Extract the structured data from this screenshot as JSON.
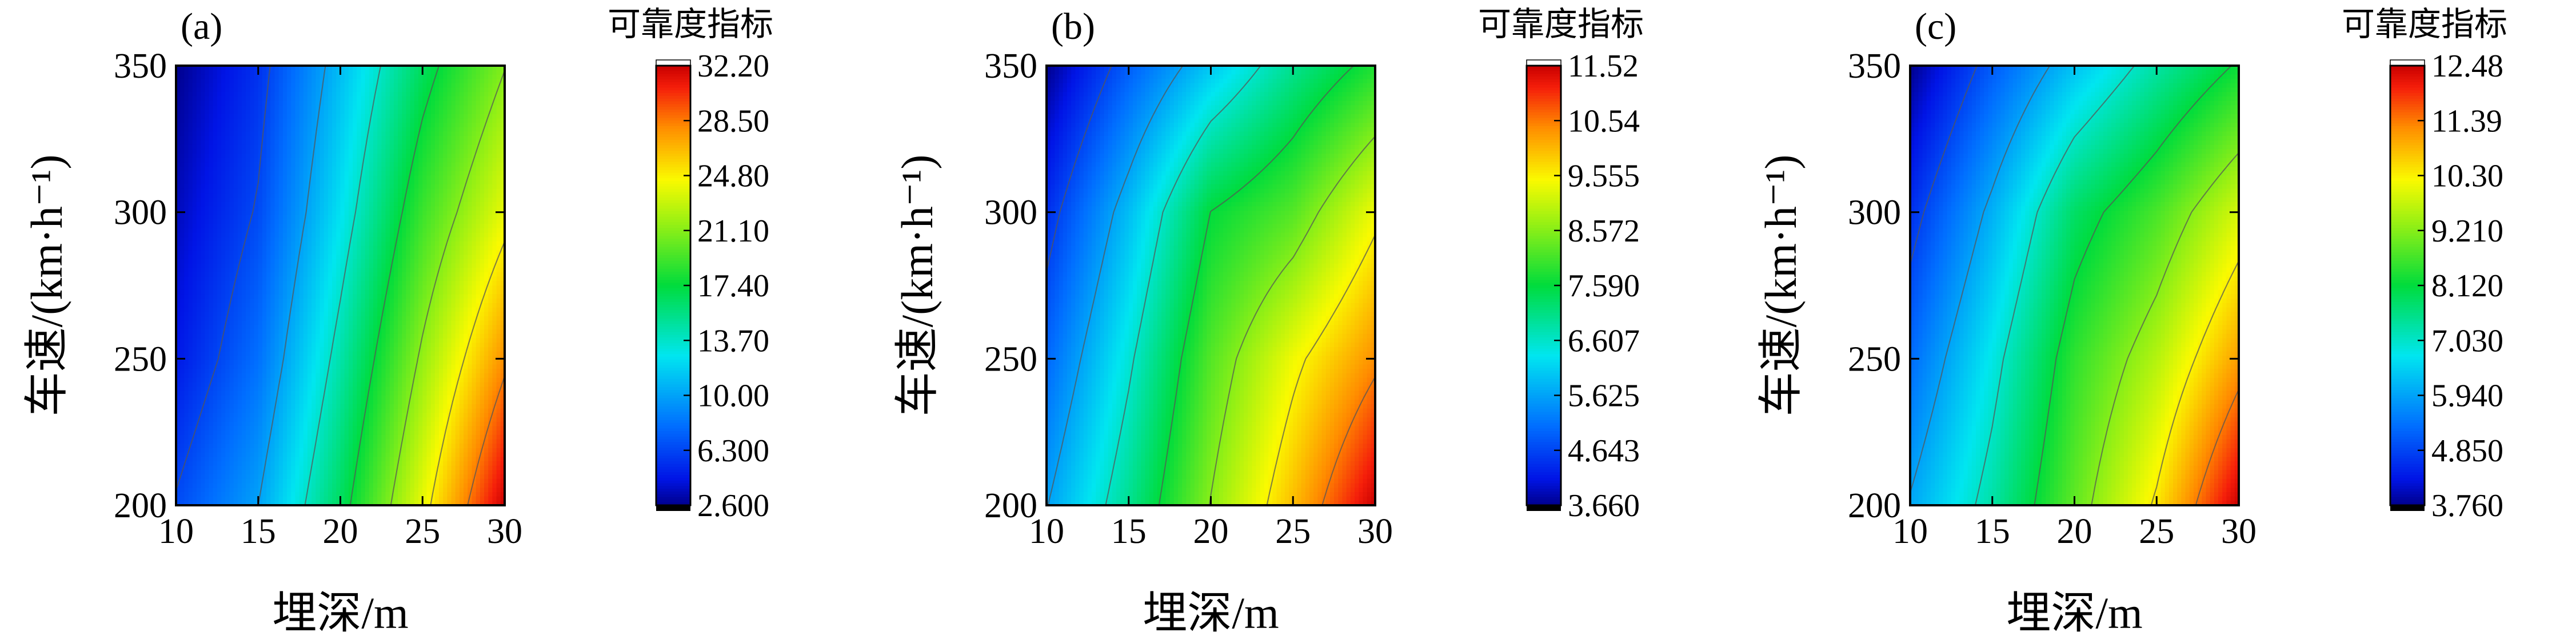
{
  "chart_data": [
    {
      "type": "heatmap",
      "panel_label": "(a)",
      "xlabel": "埋深/m",
      "ylabel": "车速/(km·h⁻¹)",
      "xlim": [
        10,
        30
      ],
      "ylim": [
        200,
        350
      ],
      "x_ticks": [
        "10",
        "15",
        "20",
        "25",
        "30"
      ],
      "y_ticks": [
        "200",
        "250",
        "300",
        "350"
      ],
      "x_values": [
        10,
        15,
        20,
        25,
        30
      ],
      "y_values": [
        200,
        250,
        300,
        350
      ],
      "z_values": [
        [
          6.5,
          10.0,
          16.5,
          24.0,
          32.2
        ],
        [
          4.5,
          8.0,
          14.5,
          21.5,
          28.0
        ],
        [
          3.5,
          6.5,
          12.5,
          19.0,
          24.0
        ],
        [
          2.6,
          5.5,
          11.0,
          16.5,
          21.0
        ]
      ],
      "colorbar": {
        "title": "可靠度指标",
        "min": 2.6,
        "max": 32.2,
        "tick_labels": [
          "32.20",
          "28.50",
          "24.80",
          "21.10",
          "17.40",
          "13.70",
          "10.00",
          "6.300",
          "2.600"
        ]
      }
    },
    {
      "type": "heatmap",
      "panel_label": "(b)",
      "xlabel": "埋深/m",
      "ylabel": "车速/(km·h⁻¹)",
      "xlim": [
        10,
        30
      ],
      "ylim": [
        200,
        350
      ],
      "x_ticks": [
        "10",
        "15",
        "20",
        "25",
        "30"
      ],
      "y_ticks": [
        "200",
        "250",
        "300",
        "350"
      ],
      "x_values": [
        10,
        15,
        20,
        25,
        30
      ],
      "y_values": [
        200,
        250,
        300,
        350
      ],
      "z_values": [
        [
          5.6,
          7.0,
          8.6,
          10.0,
          11.52
        ],
        [
          5.0,
          6.5,
          8.2,
          9.4,
          10.4
        ],
        [
          4.4,
          5.9,
          7.6,
          8.2,
          9.4
        ],
        [
          3.66,
          4.9,
          6.0,
          7.0,
          7.8
        ]
      ],
      "colorbar": {
        "title": "可靠度指标",
        "min": 3.66,
        "max": 11.52,
        "tick_labels": [
          "11.52",
          "10.54",
          "9.555",
          "8.572",
          "7.590",
          "6.607",
          "5.625",
          "4.643",
          "3.660"
        ]
      }
    },
    {
      "type": "heatmap",
      "panel_label": "(c)",
      "xlabel": "埋深/m",
      "ylabel": "车速/(km·h⁻¹)",
      "xlim": [
        10,
        30
      ],
      "ylim": [
        200,
        350
      ],
      "x_ticks": [
        "10",
        "15",
        "20",
        "25",
        "30"
      ],
      "y_ticks": [
        "200",
        "250",
        "300",
        "350"
      ],
      "x_values": [
        10,
        15,
        20,
        25,
        30
      ],
      "y_values": [
        200,
        250,
        300,
        350
      ],
      "z_values": [
        [
          6.0,
          7.3,
          8.9,
          10.4,
          12.48
        ],
        [
          5.3,
          6.8,
          8.5,
          9.6,
          11.1
        ],
        [
          4.6,
          6.1,
          7.8,
          8.7,
          9.9
        ],
        [
          3.76,
          5.1,
          6.3,
          7.3,
          8.2
        ]
      ],
      "colorbar": {
        "title": "可靠度指标",
        "min": 3.76,
        "max": 12.48,
        "tick_labels": [
          "12.48",
          "11.39",
          "10.30",
          "9.210",
          "8.120",
          "7.030",
          "5.940",
          "4.850",
          "3.760"
        ]
      }
    }
  ]
}
